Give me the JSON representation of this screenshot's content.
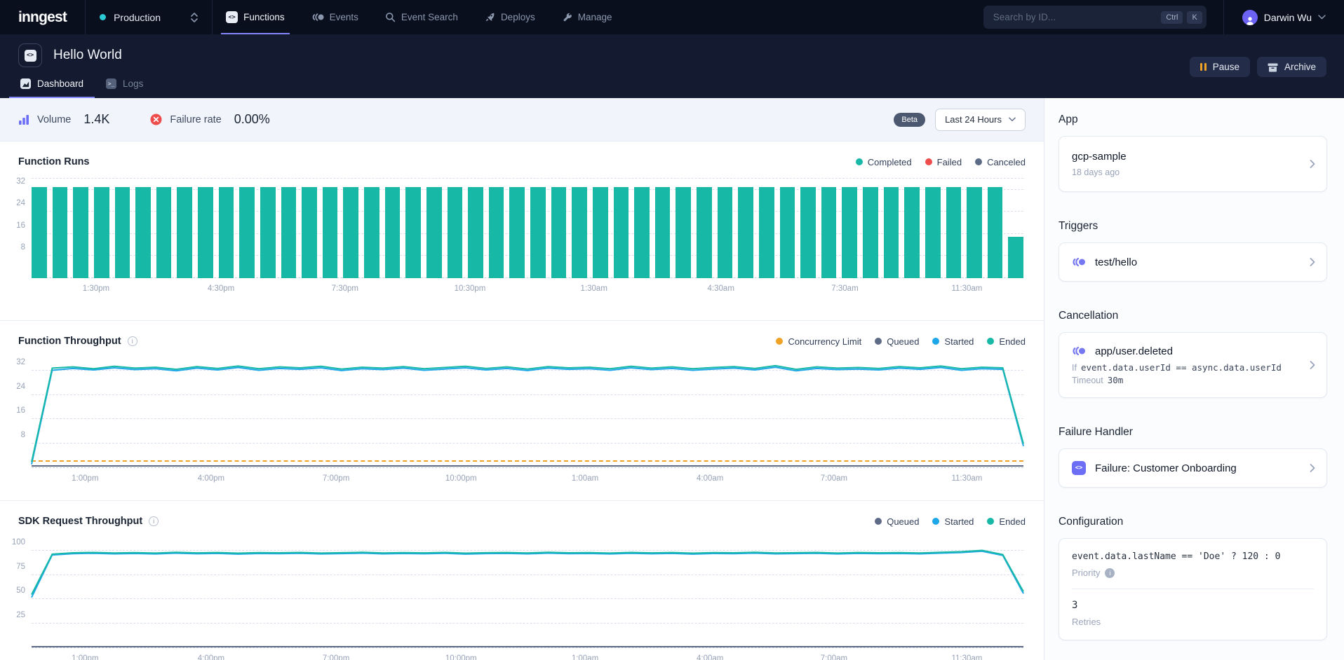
{
  "nav": {
    "logo": "inngest",
    "env": {
      "label": "Production"
    },
    "items": [
      {
        "label": "Functions",
        "active": true
      },
      {
        "label": "Events",
        "active": false
      },
      {
        "label": "Event Search",
        "active": false
      },
      {
        "label": "Deploys",
        "active": false
      },
      {
        "label": "Manage",
        "active": false
      }
    ],
    "search": {
      "placeholder": "Search by ID...",
      "keys": [
        "Ctrl",
        "K"
      ]
    },
    "user": {
      "name": "Darwin Wu"
    }
  },
  "header": {
    "title": "Hello World",
    "tabs": [
      {
        "label": "Dashboard",
        "active": true
      },
      {
        "label": "Logs",
        "active": false
      }
    ],
    "actions": {
      "pause": "Pause",
      "archive": "Archive"
    }
  },
  "statsbar": {
    "volume_label": "Volume",
    "volume_value": "1.4K",
    "failure_label": "Failure rate",
    "failure_value": "0.00%",
    "beta": "Beta",
    "range": "Last 24 Hours"
  },
  "sidebar": {
    "app": {
      "heading": "App",
      "name": "gcp-sample",
      "meta": "18 days ago"
    },
    "triggers": {
      "heading": "Triggers",
      "name": "test/hello"
    },
    "cancellation": {
      "heading": "Cancellation",
      "name": "app/user.deleted",
      "if_label": "If",
      "expression": "event.data.userId == async.data.userId",
      "timeout_label": "Timeout",
      "timeout_value": "30m"
    },
    "failure_handler": {
      "heading": "Failure Handler",
      "name": "Failure: Customer Onboarding"
    },
    "configuration": {
      "heading": "Configuration",
      "priority_expression": "event.data.lastName == 'Doe' ? 120 : 0",
      "priority_label": "Priority",
      "retries_value": "3",
      "retries_label": "Retries"
    }
  },
  "chart_data": [
    {
      "id": "function-runs",
      "type": "bar",
      "title": "Function Runs",
      "legend": [
        {
          "label": "Completed",
          "color": "#17B8A6"
        },
        {
          "label": "Failed",
          "color": "#EF4C4C"
        },
        {
          "label": "Canceled",
          "color": "#5D6B87"
        }
      ],
      "yticks": [
        8,
        16,
        24,
        32
      ],
      "ymax": 36,
      "top_gridline": true,
      "xtick_labels": [
        "1:30pm",
        "4:30pm",
        "7:30pm",
        "10:30pm",
        "1:30am",
        "4:30am",
        "7:30am",
        "11:30am"
      ],
      "bar_color": "#17B8A6",
      "series_name": "Completed",
      "values": [
        33,
        33,
        33,
        33,
        33,
        33,
        33,
        33,
        33,
        33,
        33,
        33,
        33,
        33,
        33,
        33,
        33,
        33,
        33,
        33,
        33,
        33,
        33,
        33,
        33,
        33,
        33,
        33,
        33,
        33,
        33,
        33,
        33,
        33,
        33,
        33,
        33,
        33,
        33,
        33,
        33,
        33,
        33,
        33,
        33,
        33,
        33,
        15
      ]
    },
    {
      "id": "function-throughput",
      "type": "line",
      "title": "Function Throughput",
      "has_info": true,
      "legend": [
        {
          "label": "Concurrency Limit",
          "color": "#F0A226"
        },
        {
          "label": "Queued",
          "color": "#5D6B87"
        },
        {
          "label": "Started",
          "color": "#1EA7E8"
        },
        {
          "label": "Ended",
          "color": "#17B8A6"
        }
      ],
      "yticks": [
        8,
        16,
        24,
        32
      ],
      "ymax": 34.5,
      "xtick_labels": [
        "1:00pm",
        "4:00pm",
        "7:00pm",
        "10:00pm",
        "1:00am",
        "4:00am",
        "7:00am",
        "11:30am"
      ],
      "hlines": [
        {
          "name": "Concurrency Limit",
          "value": 2,
          "color": "#F0A226",
          "dashed": true
        },
        {
          "name": "Queued",
          "value": 0.4,
          "color": "#5D6B87",
          "dashed": false
        }
      ],
      "series": [
        {
          "name": "Started",
          "color": "#1EA7E8",
          "values": [
            1.2,
            32.1,
            32.7,
            32.2,
            32.9,
            32.3,
            32.6,
            31.9,
            32.8,
            32.2,
            33.0,
            32.1,
            32.7,
            32.4,
            32.9,
            32.0,
            32.6,
            32.3,
            32.8,
            32.1,
            32.5,
            32.9,
            32.2,
            32.7,
            32.0,
            32.8,
            32.4,
            32.6,
            32.1,
            32.9,
            32.3,
            32.7,
            32.1,
            32.5,
            32.8,
            32.2,
            33.1,
            31.9,
            32.7,
            32.3,
            32.5,
            32.2,
            32.8,
            32.4,
            33.0,
            32.1,
            32.6,
            32.4,
            7.2
          ]
        },
        {
          "name": "Ended",
          "color": "#17B8A6",
          "values": [
            2.0,
            32.8,
            33.2,
            32.6,
            33.4,
            32.8,
            33.1,
            32.4,
            33.3,
            32.7,
            33.5,
            32.6,
            33.2,
            32.9,
            33.4,
            32.5,
            33.1,
            32.8,
            33.3,
            32.6,
            33.0,
            33.4,
            32.7,
            33.2,
            32.5,
            33.3,
            32.9,
            33.1,
            32.6,
            33.4,
            32.8,
            33.2,
            32.6,
            33.0,
            33.3,
            32.7,
            33.6,
            32.4,
            33.2,
            32.8,
            33.0,
            32.7,
            33.3,
            32.9,
            33.5,
            32.6,
            33.1,
            32.9,
            8.0
          ]
        }
      ]
    },
    {
      "id": "sdk-request-throughput",
      "type": "line",
      "title": "SDK Request Throughput",
      "has_info": true,
      "legend": [
        {
          "label": "Queued",
          "color": "#5D6B87"
        },
        {
          "label": "Started",
          "color": "#1EA7E8"
        },
        {
          "label": "Ended",
          "color": "#17B8A6"
        }
      ],
      "yticks": [
        25,
        50,
        75,
        100
      ],
      "ymax": 105,
      "xtick_labels": [
        "1:00pm",
        "4:00pm",
        "7:00pm",
        "10:00pm",
        "1:00am",
        "4:00am",
        "7:00am",
        "11:30am"
      ],
      "hlines": [
        {
          "name": "Queued",
          "value": 1,
          "color": "#5D6B87",
          "dashed": false
        }
      ],
      "series": [
        {
          "name": "Started",
          "color": "#1EA7E8",
          "values": [
            52,
            95.6,
            96.9,
            97.3,
            96.7,
            97.1,
            96.6,
            97.4,
            96.8,
            97.2,
            96.5,
            97.1,
            96.9,
            97.3,
            96.6,
            97.0,
            97.4,
            96.7,
            97.1,
            96.8,
            97.3,
            96.5,
            97.0,
            97.2,
            96.7,
            97.4,
            96.9,
            97.1,
            96.6,
            97.3,
            96.8,
            97.2,
            96.5,
            97.1,
            96.9,
            97.4,
            96.7,
            97.0,
            97.3,
            96.6,
            97.2,
            96.9,
            97.1,
            96.7,
            97.4,
            98.1,
            99.4,
            95.1,
            56
          ]
        },
        {
          "name": "Ended",
          "color": "#17B8A6",
          "values": [
            55,
            96.5,
            97.8,
            98.2,
            97.6,
            98.0,
            97.5,
            98.3,
            97.7,
            98.1,
            97.4,
            98.0,
            97.8,
            98.2,
            97.5,
            97.9,
            98.3,
            97.6,
            98.0,
            97.7,
            98.2,
            97.4,
            97.9,
            98.1,
            97.6,
            98.3,
            97.8,
            98.0,
            97.5,
            98.2,
            97.7,
            98.1,
            97.4,
            98.0,
            97.8,
            98.3,
            97.6,
            97.9,
            98.2,
            97.5,
            98.1,
            97.8,
            98.0,
            97.6,
            98.3,
            99.0,
            100.3,
            96.0,
            58
          ]
        }
      ]
    }
  ]
}
